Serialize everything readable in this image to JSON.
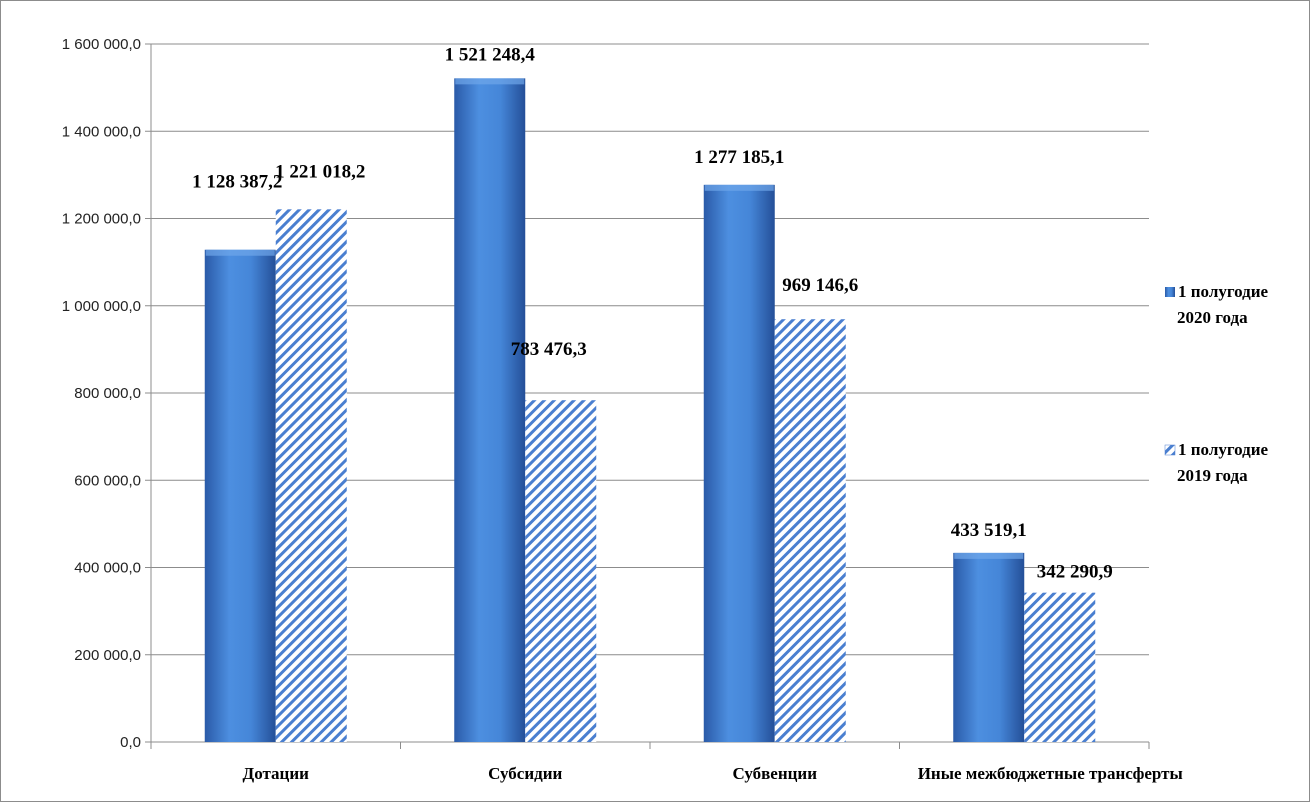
{
  "chart_data": {
    "type": "bar",
    "categories": [
      "Дотации",
      "Субсидии",
      "Субвенции",
      "Иные межбюджетные трансферты"
    ],
    "series": [
      {
        "name": "1 полугодие 2020 года",
        "name_lines": [
          "1 полугодие",
          "2020 года"
        ],
        "values": [
          1128387.2,
          1521248.4,
          1277185.1,
          433519.1
        ],
        "value_labels": [
          "1 128 387,2",
          "1 521 248,4",
          "1 277 185,1",
          "433 519,1"
        ],
        "color": "#3f7fd4",
        "pattern": "solid"
      },
      {
        "name": "1 полугодие 2019 года",
        "name_lines": [
          "1 полугодие",
          "2019 года"
        ],
        "values": [
          1221018.2,
          783476.3,
          969146.6,
          342290.9
        ],
        "value_labels": [
          "1 221 018,2",
          "783 476,3",
          "969 146,6",
          "342 290,9"
        ],
        "color": "#4a7fd0",
        "pattern": "diagonal-hatch"
      }
    ],
    "yticks": [
      0,
      200000,
      400000,
      600000,
      800000,
      1000000,
      1200000,
      1400000,
      1600000
    ],
    "ytick_labels": [
      "0,0",
      "200 000,0",
      "400 000,0",
      "600 000,0",
      "800 000,0",
      "1 000 000,0",
      "1 200 000,0",
      "1 400 000,0",
      "1 600 000,0"
    ],
    "ylim": [
      0,
      1600000
    ],
    "grid": true,
    "legend_position": "right"
  }
}
